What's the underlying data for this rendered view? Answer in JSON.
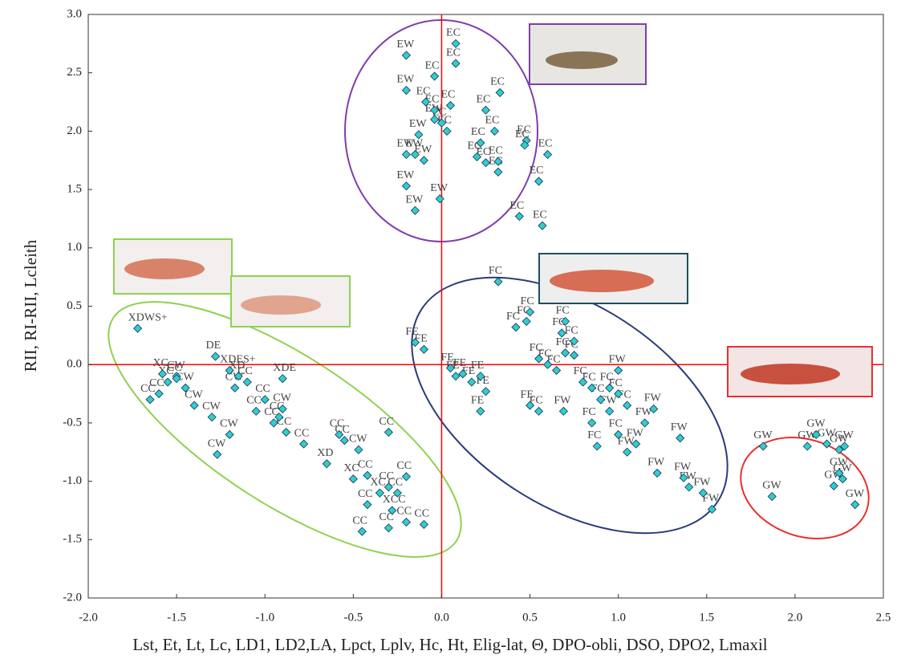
{
  "chart_data": {
    "type": "scatter",
    "x_label": "Lst, Et, Lt, Lc, LD1, LD2,LA, Lpct, Lplv, Hc, Ht, Elig-lat, Θ, DPO-obli, DSO, DPO2, Lmaxil",
    "y_label": "RII, RI-RII, Lcleith",
    "xlim": [
      -2,
      2.5
    ],
    "ylim": [
      -2,
      3
    ],
    "xticks": [
      {
        "value": -2,
        "label": "-2.0"
      },
      -1.5,
      {
        "value": -1,
        "label": "-1.0"
      },
      -0.5,
      {
        "value": 0,
        "label": "0.0"
      },
      0.5,
      {
        "value": 1,
        "label": "1.0"
      },
      1.5,
      {
        "value": 2,
        "label": "2.0"
      },
      2.5
    ],
    "yticks": [
      {
        "value": -2,
        "label": "-2.0"
      },
      -1.5,
      {
        "value": -1,
        "label": "-1.0"
      },
      -0.5,
      {
        "value": 0,
        "label": "0.0"
      },
      0.5,
      {
        "value": 1,
        "label": "1.0"
      },
      1.5,
      {
        "value": 2,
        "label": "2.0"
      },
      2.5,
      {
        "value": 3,
        "label": "3.0"
      }
    ],
    "reference_lines": {
      "x": 0,
      "y": 0,
      "color": "#ff0000"
    },
    "color": "#33cccc",
    "x": [
      0.08,
      -0.2,
      0.08,
      -0.04,
      -0.2,
      -0.09,
      0.05,
      -0.04,
      0.0,
      -0.04,
      0.25,
      0.33,
      0.3,
      0.22,
      0.48,
      0.6,
      0.03,
      -0.13,
      -0.2,
      -0.15,
      -0.1,
      0.2,
      0.25,
      0.32,
      0.32,
      0.55,
      -0.2,
      -0.15,
      -0.01,
      0.44,
      0.57,
      0.47,
      0.32,
      0.48,
      0.5,
      0.42,
      0.7,
      0.68,
      0.75,
      -0.15,
      -0.1,
      0.05,
      0.08,
      0.17,
      0.22,
      0.25,
      0.22,
      0.12,
      0.5,
      0.55,
      0.55,
      0.6,
      0.65,
      0.7,
      0.75,
      0.69,
      0.8,
      0.85,
      0.9,
      0.95,
      1.0,
      0.85,
      0.88,
      1.0,
      1.05,
      1.1,
      1.15,
      1.2,
      1.22,
      1.35,
      1.37,
      1.4,
      1.48,
      1.53,
      1.0,
      1.05,
      0.95,
      1.82,
      1.87,
      2.07,
      2.12,
      2.18,
      2.25,
      2.28,
      2.22,
      2.25,
      2.27,
      2.34,
      -1.72,
      -1.28,
      -1.2,
      -0.9,
      -1.5,
      -1.55,
      -1.6,
      -1.65,
      -1.45,
      -1.3,
      -1.2,
      -1.27,
      -1.1,
      -1.0,
      -0.9,
      -0.95,
      -0.88,
      -0.78,
      -0.65,
      -0.58,
      -0.3,
      -0.55,
      -0.47,
      -0.5,
      -0.42,
      -0.3,
      -0.25,
      -0.35,
      -0.2,
      -0.1,
      -0.42,
      -0.45,
      -0.28,
      -0.2,
      -0.3,
      -1.4,
      -1.5,
      -1.58,
      -1.17,
      -1.05,
      -0.92,
      -1.15
    ],
    "values": [
      2.75,
      2.65,
      2.58,
      2.47,
      2.35,
      2.25,
      2.22,
      2.18,
      2.07,
      2.1,
      2.18,
      2.33,
      2.0,
      1.9,
      1.92,
      1.8,
      2.0,
      1.97,
      1.8,
      1.8,
      1.75,
      1.78,
      1.73,
      1.74,
      1.65,
      1.57,
      1.53,
      1.32,
      1.42,
      1.27,
      1.19,
      1.88,
      0.71,
      0.37,
      0.45,
      0.32,
      0.37,
      0.27,
      0.2,
      0.19,
      0.13,
      -0.03,
      -0.1,
      -0.15,
      -0.1,
      -0.23,
      -0.4,
      -0.08,
      -0.35,
      -0.4,
      0.05,
      0.0,
      -0.05,
      0.1,
      0.08,
      -0.4,
      -0.15,
      -0.2,
      -0.3,
      -0.4,
      -0.05,
      -0.5,
      -0.7,
      -0.6,
      -0.75,
      -0.68,
      -0.5,
      -0.38,
      -0.93,
      -0.63,
      -0.97,
      -1.05,
      -1.1,
      -1.24,
      -0.25,
      -0.35,
      -0.2,
      -0.7,
      -1.13,
      -0.7,
      -0.6,
      -0.68,
      -0.73,
      -0.7,
      -1.04,
      -0.93,
      -0.98,
      -1.2,
      0.31,
      0.07,
      -0.05,
      -0.12,
      -0.1,
      -0.15,
      -0.25,
      -0.3,
      -0.2,
      -0.45,
      -0.6,
      -0.77,
      -0.15,
      -0.3,
      -0.38,
      -0.5,
      -0.58,
      -0.68,
      -0.85,
      -0.6,
      -0.58,
      -0.65,
      -0.73,
      -0.98,
      -0.95,
      -1.05,
      -1.1,
      -1.1,
      -0.96,
      -1.37,
      -1.2,
      -1.43,
      -1.25,
      -1.35,
      -1.4,
      -0.35,
      -0.12,
      -0.08,
      -0.2,
      -0.4,
      -0.45,
      -0.1
    ],
    "point_labels": [
      "EC",
      "EW",
      "EC",
      "EC",
      "EW",
      "EC",
      "EC",
      "EC",
      "EC",
      "EW",
      "EC",
      "EC",
      "EC",
      "EC",
      "EC",
      "EC",
      "EC",
      "EW",
      "EW",
      "EW",
      "EW",
      "EC",
      "EC",
      "EC",
      "EC",
      "EC",
      "EW",
      "EW",
      "EW",
      "EC",
      "EC",
      "EC",
      "FC",
      "FC",
      "FC",
      "FC",
      "FC",
      "FC",
      "FC",
      "FE",
      "FE",
      "FE",
      "FE",
      "FE",
      "FE",
      "FE",
      "FE",
      "FE",
      "FE",
      "FC",
      "FC",
      "FC",
      "FC",
      "FC",
      "FC",
      "FW",
      "FC",
      "FC",
      "FC",
      "FW",
      "FW",
      "FC",
      "FC",
      "FC",
      "FW",
      "FW",
      "FW",
      "FW",
      "FW",
      "FW",
      "FW",
      "FW",
      "FW",
      "FW",
      "FC",
      "FC",
      "FC",
      "GW",
      "GW",
      "GW",
      "GW",
      "GW",
      "GW",
      "GW",
      "GW",
      "GW",
      "GW",
      "GW",
      "XDWS+",
      "DE",
      "XDES+",
      "XDE",
      "CW",
      "XC",
      "CC",
      "CC",
      "CW",
      "CW",
      "CW",
      "CW",
      "CC",
      "CC",
      "CW",
      "CC",
      "CC",
      "CC",
      "XD",
      "CC",
      "CC",
      "CC",
      "CW",
      "XC",
      "CC",
      "CC",
      "CC",
      "XC",
      "CC",
      "CC",
      "CC",
      "CC",
      "XCC",
      "CC",
      "CC",
      "CW",
      "CC",
      "XC",
      "CW",
      "CC",
      "CC",
      "XD"
    ]
  }
}
